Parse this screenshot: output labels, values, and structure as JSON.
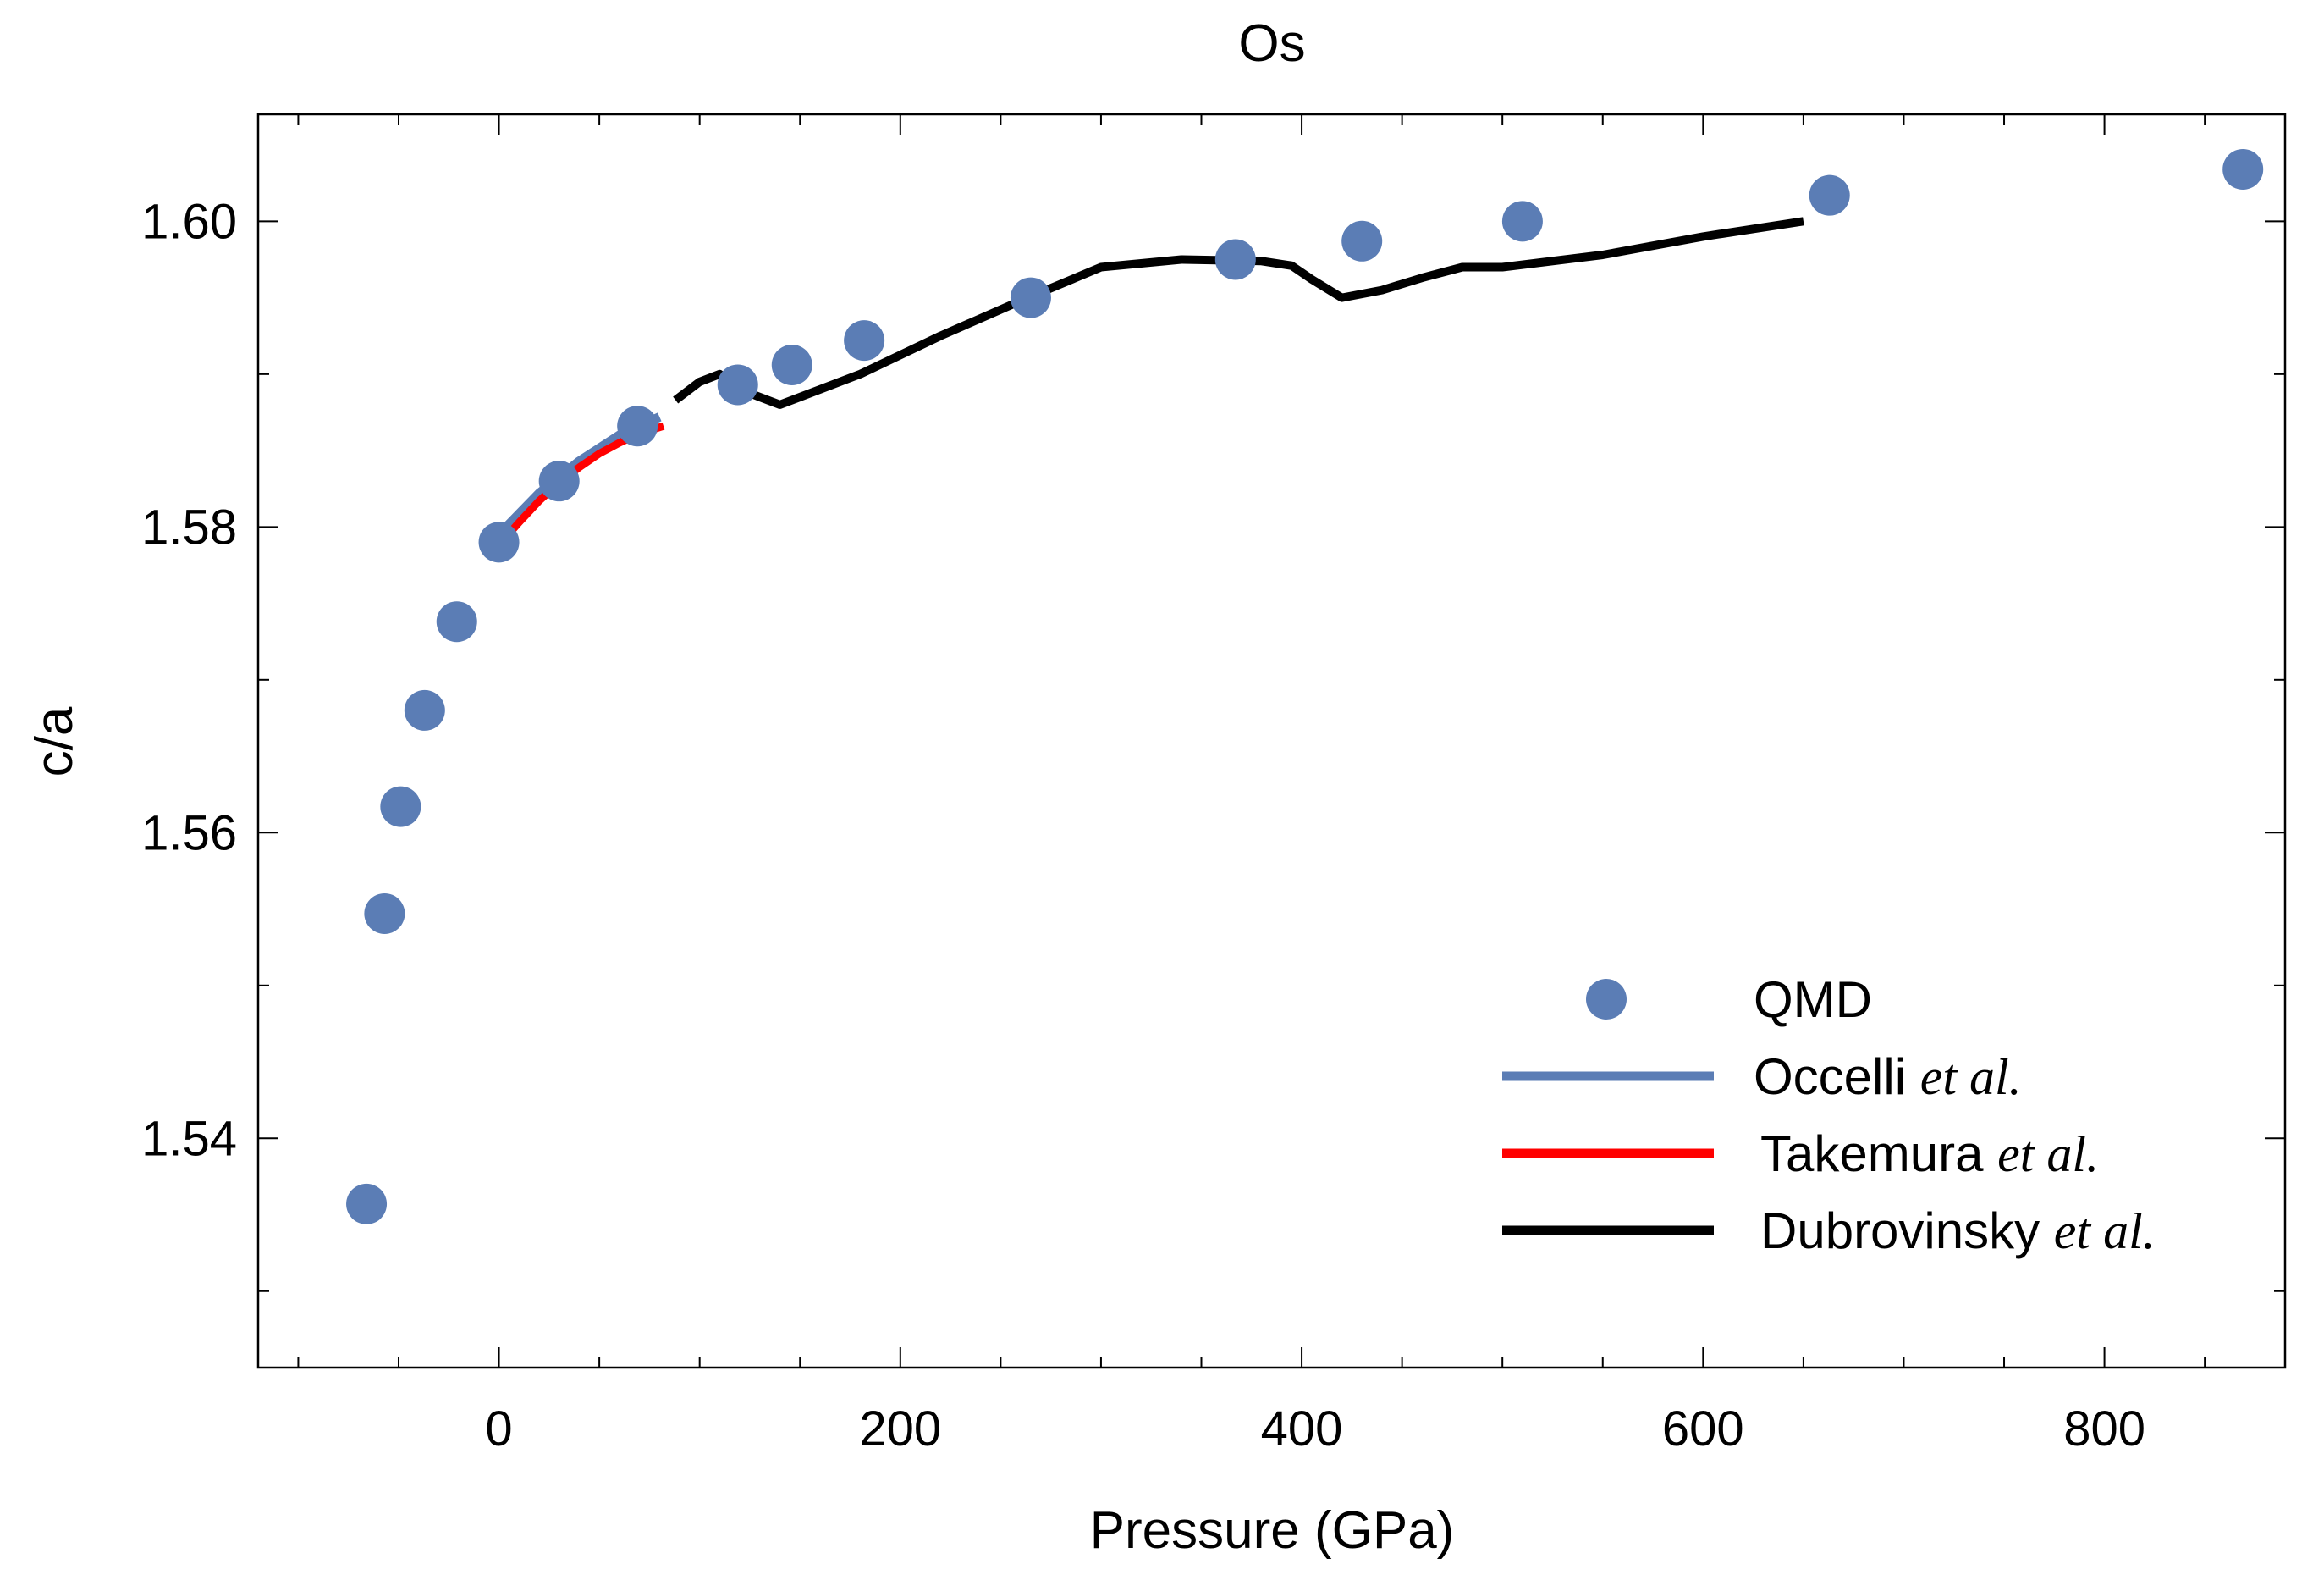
{
  "chart_data": {
    "type": "scatter",
    "title": "Os",
    "xlabel": "Pressure (GPa)",
    "ylabel": "c/a",
    "xlim": [
      -120,
      890
    ],
    "ylim": [
      1.525,
      1.607
    ],
    "xticks": [
      0,
      200,
      400,
      600,
      800
    ],
    "xtick_labels": [
      "0",
      "200",
      "400",
      "600",
      "800"
    ],
    "yticks": [
      1.54,
      1.56,
      1.58,
      1.6
    ],
    "ytick_labels": [
      "1.54",
      "1.56",
      "1.58",
      "1.60"
    ],
    "colors": {
      "qmd": "#5b7db5",
      "occelli": "#5b7db5",
      "takemura": "#ff0000",
      "dubrovinsky": "#000000"
    },
    "legend_position": "bottom-right",
    "series": [
      {
        "name": "QMD",
        "kind": "points",
        "color_key": "qmd",
        "x": [
          -66,
          -57,
          -49,
          -37,
          -21,
          0,
          30,
          69,
          119,
          146,
          182,
          265,
          367,
          430,
          510,
          663,
          869
        ],
        "y": [
          1.5357,
          1.5547,
          1.5617,
          1.568,
          1.5738,
          1.579,
          1.583,
          1.5866,
          1.5893,
          1.5906,
          1.5922,
          1.595,
          1.5975,
          1.5987,
          1.6,
          1.6017,
          1.6034
        ]
      },
      {
        "name": "Occelli",
        "legend_suffix": "et al.",
        "kind": "line",
        "color_key": "occelli",
        "x": [
          0,
          20,
          40,
          60,
          80
        ],
        "y": [
          1.5795,
          1.5822,
          1.5843,
          1.586,
          1.5872
        ]
      },
      {
        "name": "Takemura",
        "legend_suffix": "et al.",
        "kind": "line",
        "color_key": "takemura",
        "x": [
          0,
          10,
          20,
          30,
          40,
          50,
          60,
          70,
          82
        ],
        "y": [
          1.5788,
          1.5803,
          1.5817,
          1.5829,
          1.5839,
          1.5848,
          1.5855,
          1.5861,
          1.5866
        ]
      },
      {
        "name": "Dubrovinsky",
        "legend_suffix": "et al.",
        "kind": "line",
        "color_key": "dubrovinsky",
        "x": [
          88,
          100,
          110,
          120,
          130,
          140,
          150,
          180,
          220,
          260,
          300,
          340,
          380,
          395,
          405,
          420,
          440,
          460,
          480,
          500,
          550,
          600,
          650
        ],
        "y": [
          1.5883,
          1.5895,
          1.59,
          1.589,
          1.5885,
          1.588,
          1.5885,
          1.59,
          1.5925,
          1.5948,
          1.597,
          1.5975,
          1.5974,
          1.5971,
          1.5962,
          1.595,
          1.5955,
          1.5963,
          1.597,
          1.597,
          1.5978,
          1.599,
          1.6
        ]
      }
    ]
  }
}
